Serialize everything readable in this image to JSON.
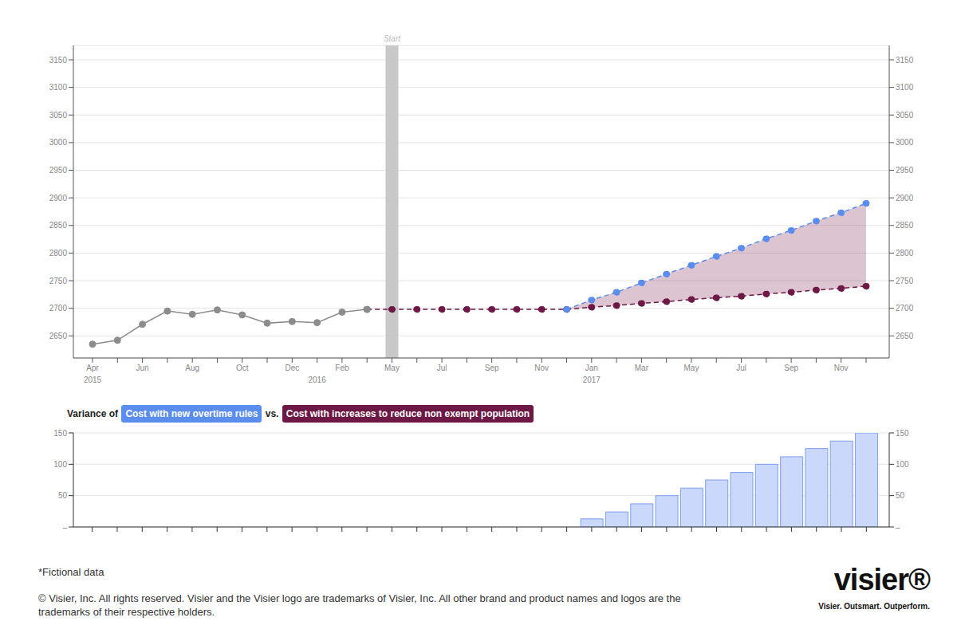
{
  "chart_data": [
    {
      "type": "line",
      "categories": [
        "Apr 2015",
        null,
        "Jun",
        null,
        "Aug",
        null,
        "Oct",
        null,
        "Dec",
        "2016",
        "Feb",
        null,
        "May",
        null,
        "Jul",
        null,
        "Sep",
        null,
        "Nov",
        null,
        "Jan 2017",
        null,
        "Mar",
        null,
        "May",
        null,
        "Jul",
        null,
        "Sep",
        null,
        "Nov",
        null
      ],
      "series": [
        {
          "color": "#8c8c8c",
          "marker": "circle",
          "line_style": "solid",
          "values": [
            2635,
            2642,
            2671,
            2695,
            2689,
            2697,
            2688,
            2673,
            2676,
            2674,
            2693,
            2698,
            null,
            null,
            null,
            null,
            null,
            null,
            null,
            null,
            null,
            null,
            null,
            null,
            null,
            null,
            null,
            null,
            null,
            null,
            null,
            null
          ]
        },
        {
          "name": "Cost with new overtime rules",
          "color": "#5b8def",
          "marker": "circle",
          "line_style": "dashed",
          "values": [
            null,
            null,
            null,
            null,
            null,
            null,
            null,
            null,
            null,
            null,
            null,
            null,
            null,
            null,
            null,
            null,
            null,
            null,
            null,
            2698,
            2715,
            2729,
            2746,
            2762,
            2778,
            2794,
            2809,
            2826,
            2841,
            2858,
            2873,
            2890
          ]
        },
        {
          "name": "Cost with increases to reduce non exempt population",
          "color": "#6e1845",
          "marker": "circle",
          "line_style": "dashed",
          "values": [
            null,
            null,
            null,
            null,
            null,
            null,
            null,
            null,
            null,
            null,
            null,
            2698,
            2698,
            2698,
            2698,
            2698,
            2698,
            2698,
            2698,
            2698,
            2702,
            2705,
            2709,
            2712,
            2716,
            2719,
            2722,
            2726,
            2729,
            2733,
            2736,
            2740
          ]
        }
      ],
      "ylim": [
        2610,
        3176
      ],
      "yticks": [
        2650,
        2700,
        2750,
        2800,
        2850,
        2900,
        2950,
        3000,
        3050,
        3100,
        3150
      ],
      "y2lim": [
        2610,
        3176
      ],
      "y2ticks": [
        2650,
        2700,
        2750,
        2800,
        2850,
        2900,
        2950,
        3000,
        3050,
        3100,
        3150
      ],
      "grid": true,
      "annotations": [
        {
          "label": "Start",
          "at": 12
        }
      ]
    },
    {
      "type": "bar",
      "title": "Variance of Cost with new overtime rules vs. Cost with increases to reduce non exempt population",
      "categories": [
        null,
        null,
        null,
        null,
        null,
        null,
        null,
        null,
        null,
        null,
        null,
        null,
        null,
        null,
        null,
        null,
        null,
        null,
        null,
        null,
        null,
        null,
        null,
        null,
        null,
        null,
        null,
        null,
        null,
        null,
        null,
        null
      ],
      "values": [
        null,
        null,
        null,
        null,
        null,
        null,
        null,
        null,
        null,
        null,
        null,
        null,
        null,
        null,
        null,
        null,
        null,
        null,
        null,
        null,
        13,
        24,
        37,
        50,
        62,
        75,
        87,
        100,
        112,
        125,
        137,
        150
      ],
      "color": "#c9d8fb",
      "ylim": [
        0,
        150
      ],
      "yticks": [
        {
          "value": 0,
          "label": "–"
        },
        50,
        100,
        150
      ],
      "y2lim": [
        0,
        150
      ],
      "y2ticks": [
        {
          "value": 0,
          "label": "–"
        },
        50,
        100,
        150
      ],
      "grid": true,
      "tick_labels": "y"
    }
  ],
  "footer": {
    "note": "*Fictional data",
    "copyright": "© Visier, Inc. All rights reserved. Visier and the Visier logo are trademarks of Visier, Inc. All other brand and product names and logos are the trademarks of their respective holders.",
    "logo": "visier®",
    "tagline": "Visier. Outsmart. Outperform."
  }
}
